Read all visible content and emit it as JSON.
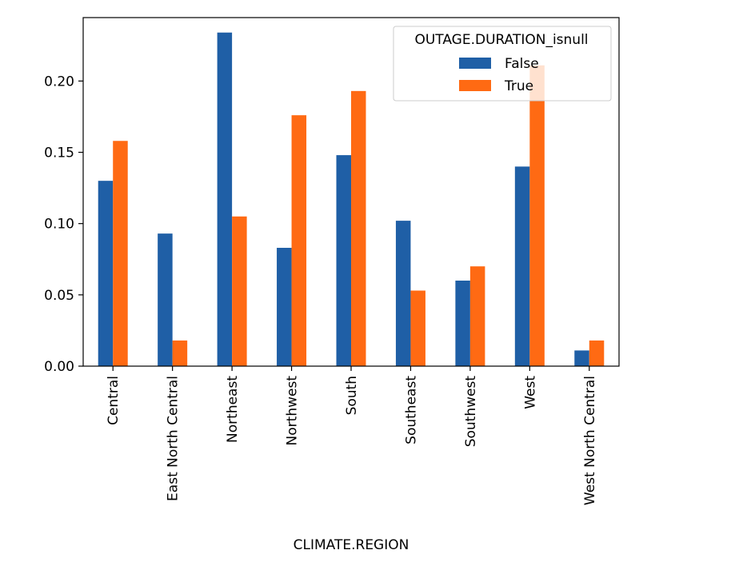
{
  "chart_data": {
    "type": "bar",
    "categories": [
      "Central",
      "East North Central",
      "Northeast",
      "Northwest",
      "South",
      "Southeast",
      "Southwest",
      "West",
      "West North Central"
    ],
    "series": [
      {
        "name": "False",
        "color": "#1f5fa6",
        "values": [
          0.13,
          0.093,
          0.234,
          0.083,
          0.148,
          0.102,
          0.06,
          0.14,
          0.011
        ]
      },
      {
        "name": "True",
        "color": "#ff6a13",
        "values": [
          0.158,
          0.018,
          0.105,
          0.176,
          0.193,
          0.053,
          0.07,
          0.211,
          0.018
        ]
      }
    ],
    "xlabel": "CLIMATE.REGION",
    "ylabel": "",
    "title": "",
    "ylim": [
      0,
      0.2445
    ],
    "yticks": [
      0.0,
      0.05,
      0.1,
      0.15,
      0.2
    ],
    "ytick_labels": [
      "0.00",
      "0.05",
      "0.10",
      "0.15",
      "0.20"
    ],
    "legend": {
      "title": "OUTAGE.DURATION_isnull",
      "position": "top-right"
    },
    "grid": false
  }
}
